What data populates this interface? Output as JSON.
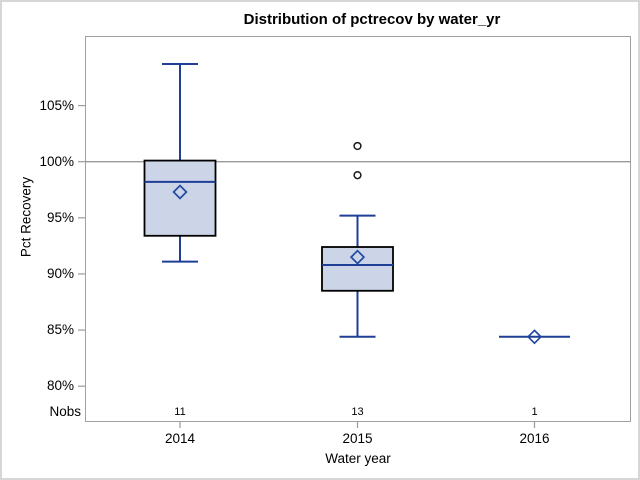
{
  "chart_data": {
    "type": "boxplot",
    "title": "Distribution of pctrecov by water_yr",
    "xlabel": "Water year",
    "ylabel": "Pct Recovery",
    "y_ticks": [
      {
        "value": 105,
        "label": "105%"
      },
      {
        "value": 100,
        "label": "100%"
      },
      {
        "value": 95,
        "label": "95%"
      },
      {
        "value": 90,
        "label": "90%"
      },
      {
        "value": 85,
        "label": "85%"
      },
      {
        "value": 80,
        "label": "80%"
      }
    ],
    "ylim": [
      76.8,
      111.2
    ],
    "refline_y": 100,
    "grid": "off",
    "categories": [
      "2014",
      "2015",
      "2016"
    ],
    "nobs_header": "Nobs",
    "series": [
      {
        "category": "2014",
        "nobs": "11",
        "whisker_low": 91.1,
        "q1": 93.4,
        "median": 98.2,
        "mean": 97.3,
        "q3": 100.1,
        "whisker_high": 108.7,
        "outliers": []
      },
      {
        "category": "2015",
        "nobs": "13",
        "whisker_low": 84.4,
        "q1": 88.5,
        "median": 90.8,
        "mean": 91.5,
        "q3": 92.4,
        "whisker_high": 95.2,
        "outliers": [
          101.4,
          98.8
        ]
      },
      {
        "category": "2016",
        "nobs": "1",
        "whisker_low": 84.4,
        "q1": 84.4,
        "median": 84.4,
        "mean": 84.4,
        "q3": 84.4,
        "whisker_high": 84.4,
        "outliers": []
      }
    ],
    "colors": {
      "box_fill": "#ccd5e7",
      "box_border": "#000000",
      "whisker": "#1f3e96",
      "median": "#1f3e96",
      "mean_marker": "#2348a2",
      "outlier": "#1a1a1a",
      "wall_border": "#a1a1a1",
      "refline": "#9a9a9a",
      "tick": "#9a9a9a"
    }
  }
}
